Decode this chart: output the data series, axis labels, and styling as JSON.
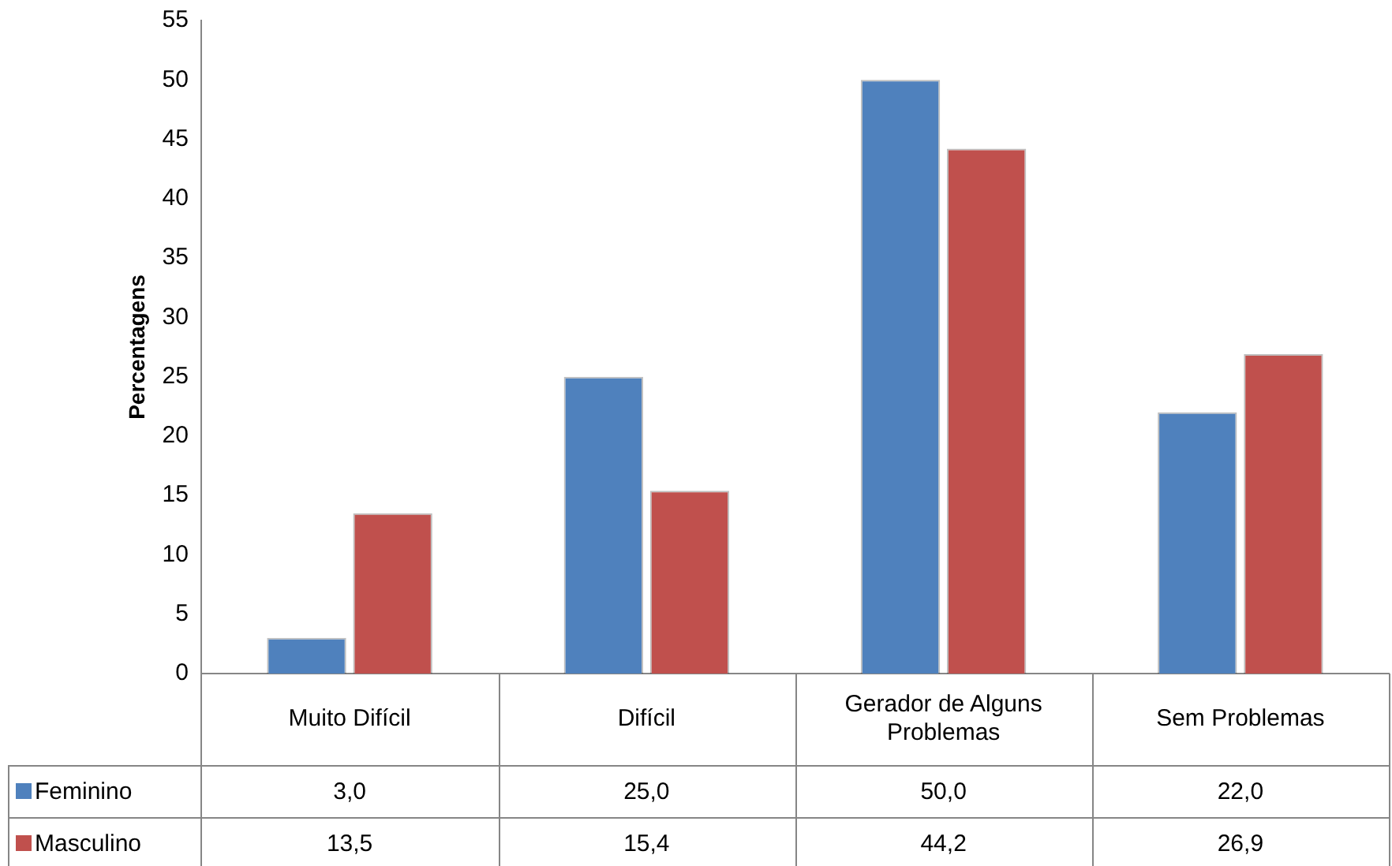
{
  "chart_data": {
    "type": "bar",
    "ylabel": "Percentagens",
    "categories": [
      "Muito Difícil",
      "Difícil",
      "Gerador de Alguns Problemas",
      "Sem Problemas"
    ],
    "series": [
      {
        "name": "Feminino",
        "color": "#4f81bd",
        "values": [
          3.0,
          25.0,
          50.0,
          22.0
        ],
        "value_labels": [
          "3,0",
          "25,0",
          "50,0",
          "22,0"
        ]
      },
      {
        "name": "Masculino",
        "color": "#c0504d",
        "values": [
          13.5,
          15.4,
          44.2,
          26.9
        ],
        "value_labels": [
          "13,5",
          "15,4",
          "44,2",
          "26,9"
        ]
      }
    ],
    "ylim": [
      0,
      55
    ],
    "yticks": [
      0,
      5,
      10,
      15,
      20,
      25,
      30,
      35,
      40,
      45,
      50,
      55
    ],
    "grid": false,
    "legend": "bottom"
  }
}
